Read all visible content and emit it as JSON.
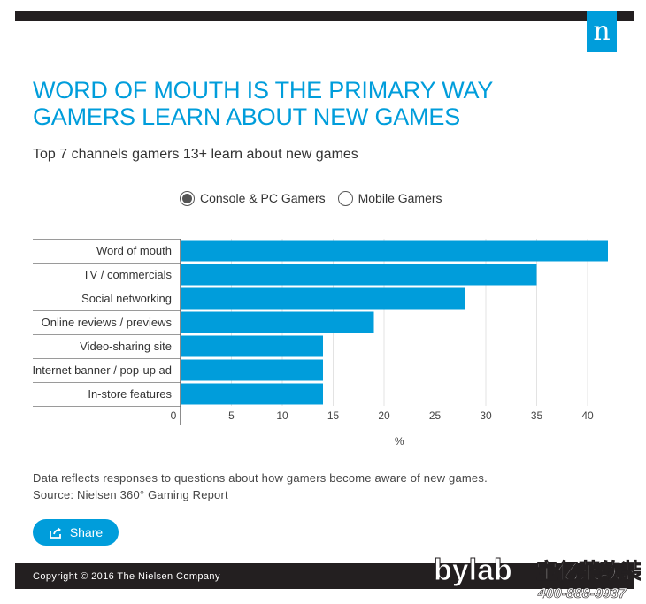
{
  "header": {
    "logo_letter": "n",
    "headline_line1": "WORD OF MOUTH IS THE PRIMARY WAY",
    "headline_line2": "GAMERS LEARN ABOUT NEW GAMES",
    "subtitle": "Top 7 channels gamers 13+ learn about new games"
  },
  "toggle": {
    "options": [
      {
        "label": "Console & PC Gamers",
        "selected": true
      },
      {
        "label": "Mobile Gamers",
        "selected": false
      }
    ]
  },
  "chart_data": {
    "type": "bar",
    "orientation": "horizontal",
    "categories": [
      "Word of mouth",
      "TV / commercials",
      "Social networking",
      "Online reviews / previews",
      "Video-sharing site",
      "Internet banner / pop-up ad",
      "In-store features"
    ],
    "values": [
      42,
      35,
      28,
      19,
      14,
      14,
      14
    ],
    "xlabel": "%",
    "xlim": [
      0,
      43
    ],
    "xticks": [
      0,
      5,
      10,
      15,
      20,
      25,
      30,
      35,
      40
    ],
    "grid": true,
    "bar_color": "#009ddb"
  },
  "footer": {
    "note_line1": "Data reflects responses to questions about how gamers become aware of new games.",
    "note_line2": "Source: Nielsen 360° Gaming Report",
    "share_label": "Share",
    "copyright": "Copyright © 2016 The Nielsen Company"
  },
  "watermark": {
    "brand": "bylab",
    "cn_text": "宝亿莱软装",
    "phone": "400-888-9937"
  },
  "colors": {
    "accent": "#009ddb",
    "dark": "#231f20"
  }
}
